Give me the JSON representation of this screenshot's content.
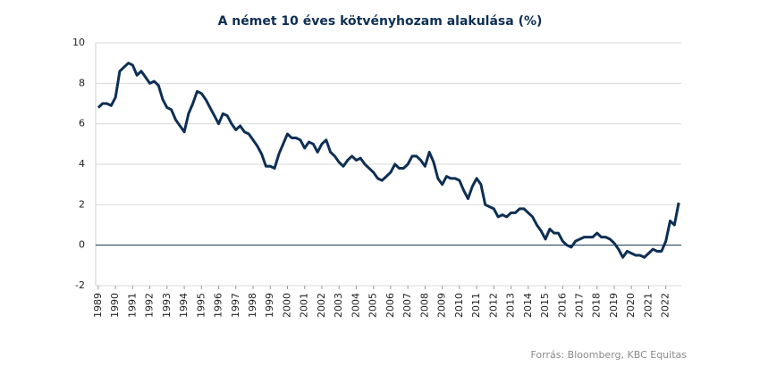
{
  "chart_data": {
    "type": "line",
    "title": "A német 10 éves kötvényhozam alakulása (%)",
    "source": "Forrás: Bloomberg,  KBC Equitas",
    "xlim": [
      1988.85,
      2022.9
    ],
    "xticks": [
      1989,
      1990,
      1991,
      1992,
      1993,
      1994,
      1995,
      1996,
      1997,
      1998,
      1999,
      2000,
      2001,
      2002,
      2003,
      2004,
      2005,
      2006,
      2007,
      2008,
      2009,
      2010,
      2011,
      2012,
      2013,
      2014,
      2015,
      2016,
      2017,
      2018,
      2019,
      2020,
      2021,
      2022
    ],
    "ylim": [
      -2,
      10
    ],
    "yticks": [
      -2,
      0,
      2,
      4,
      6,
      8,
      10
    ],
    "grid": true,
    "series": [
      {
        "color": "#0e2f54",
        "x": [
          1989,
          1989.25,
          1989.5,
          1989.75,
          1990,
          1990.25,
          1990.5,
          1990.75,
          1991,
          1991.25,
          1991.5,
          1991.75,
          1992,
          1992.25,
          1992.5,
          1992.75,
          1993,
          1993.25,
          1993.5,
          1993.75,
          1994,
          1994.25,
          1994.5,
          1994.75,
          1995,
          1995.25,
          1995.5,
          1995.75,
          1996,
          1996.25,
          1996.5,
          1996.75,
          1997,
          1997.25,
          1997.5,
          1997.75,
          1998,
          1998.25,
          1998.5,
          1998.75,
          1999,
          1999.25,
          1999.5,
          1999.75,
          2000,
          2000.25,
          2000.5,
          2000.75,
          2001,
          2001.25,
          2001.5,
          2001.75,
          2002,
          2002.25,
          2002.5,
          2002.75,
          2003,
          2003.25,
          2003.5,
          2003.75,
          2004,
          2004.25,
          2004.5,
          2004.75,
          2005,
          2005.25,
          2005.5,
          2005.75,
          2006,
          2006.25,
          2006.5,
          2006.75,
          2007,
          2007.25,
          2007.5,
          2007.75,
          2008,
          2008.25,
          2008.5,
          2008.75,
          2009,
          2009.25,
          2009.5,
          2009.75,
          2010,
          2010.25,
          2010.5,
          2010.75,
          2011,
          2011.25,
          2011.5,
          2011.75,
          2012,
          2012.25,
          2012.5,
          2012.75,
          2013,
          2013.25,
          2013.5,
          2013.75,
          2014,
          2014.25,
          2014.5,
          2014.75,
          2015,
          2015.25,
          2015.5,
          2015.75,
          2016,
          2016.25,
          2016.5,
          2016.75,
          2017,
          2017.25,
          2017.5,
          2017.75,
          2018,
          2018.25,
          2018.5,
          2018.75,
          2019,
          2019.25,
          2019.5,
          2019.75,
          2020,
          2020.25,
          2020.5,
          2020.75,
          2021,
          2021.25,
          2021.5,
          2021.75,
          2022,
          2022.25,
          2022.5,
          2022.75
        ],
        "values": [
          6.8,
          7.0,
          7.0,
          6.9,
          7.3,
          8.6,
          8.8,
          9.0,
          8.9,
          8.4,
          8.6,
          8.3,
          8.0,
          8.1,
          7.9,
          7.2,
          6.8,
          6.7,
          6.2,
          5.9,
          5.6,
          6.5,
          7.0,
          7.6,
          7.5,
          7.2,
          6.8,
          6.4,
          6.0,
          6.5,
          6.4,
          6.0,
          5.7,
          5.9,
          5.6,
          5.5,
          5.2,
          4.9,
          4.5,
          3.9,
          3.9,
          3.8,
          4.5,
          5.0,
          5.5,
          5.3,
          5.3,
          5.2,
          4.8,
          5.1,
          5.0,
          4.6,
          5.0,
          5.2,
          4.6,
          4.4,
          4.1,
          3.9,
          4.2,
          4.4,
          4.2,
          4.3,
          4.0,
          3.8,
          3.6,
          3.3,
          3.2,
          3.4,
          3.6,
          4.0,
          3.8,
          3.8,
          4.0,
          4.4,
          4.4,
          4.2,
          3.9,
          4.6,
          4.1,
          3.3,
          3.0,
          3.4,
          3.3,
          3.3,
          3.2,
          2.7,
          2.3,
          2.9,
          3.3,
          3.0,
          2.0,
          1.9,
          1.8,
          1.4,
          1.5,
          1.4,
          1.6,
          1.6,
          1.8,
          1.8,
          1.6,
          1.4,
          1.0,
          0.7,
          0.3,
          0.8,
          0.6,
          0.6,
          0.2,
          0.0,
          -0.1,
          0.2,
          0.3,
          0.4,
          0.4,
          0.4,
          0.6,
          0.4,
          0.4,
          0.3,
          0.1,
          -0.2,
          -0.6,
          -0.3,
          -0.4,
          -0.5,
          -0.5,
          -0.6,
          -0.4,
          -0.2,
          -0.3,
          -0.3,
          0.2,
          1.2,
          1.0,
          2.1
        ]
      }
    ]
  }
}
